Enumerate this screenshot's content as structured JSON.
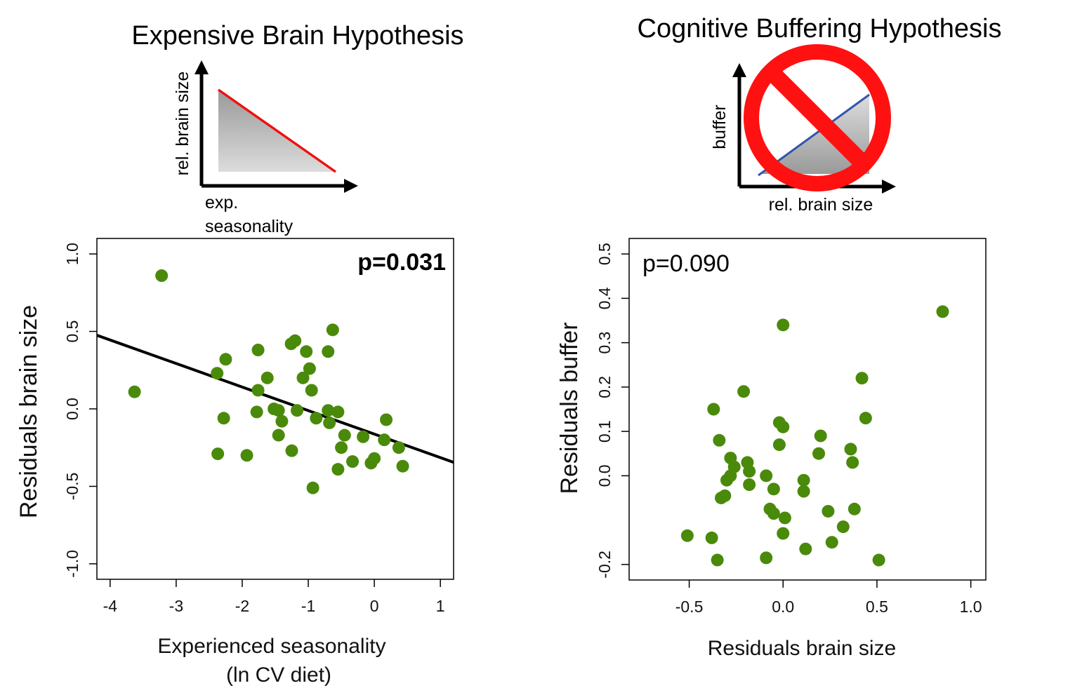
{
  "left": {
    "title": "Expensive Brain Hypothesis",
    "schematic": {
      "ylabel": "rel. brain size",
      "xlabel_line1": "exp.",
      "xlabel_line2": "seasonality",
      "line_color": "#ee1111"
    }
  },
  "right": {
    "title": "Cognitive Buffering Hypothesis",
    "schematic": {
      "ylabel": "buffer",
      "xlabel": "rel. brain size",
      "line_color": "#3355aa",
      "prohibition_color": "#ff1111"
    }
  },
  "chart_data": [
    {
      "type": "scatter",
      "xlabel_line1": "Experienced seasonality",
      "xlabel_line2": "(ln CV diet)",
      "ylabel": "Residuals brain size",
      "annotation": "p=0.031",
      "xlim": [
        -4.2,
        1.2
      ],
      "ylim": [
        -1.1,
        1.1
      ],
      "xticks": [
        "-4",
        "-3",
        "-2",
        "-1",
        "0",
        "1"
      ],
      "xtick_values": [
        -4,
        -3,
        -2,
        -1,
        0,
        1
      ],
      "yticks": [
        "-1.0",
        "-0.5",
        "0.0",
        "0.5",
        "1.0"
      ],
      "ytick_values": [
        -1.0,
        -0.5,
        0.0,
        0.5,
        1.0
      ],
      "point_color": "#4a8a0b",
      "fit_line": {
        "x": [
          -4.2,
          1.2
        ],
        "y": [
          0.475,
          -0.345
        ]
      },
      "points": [
        [
          -3.22,
          0.86
        ],
        [
          -3.63,
          0.11
        ],
        [
          -2.38,
          0.23
        ],
        [
          -2.25,
          0.32
        ],
        [
          -2.28,
          -0.06
        ],
        [
          -2.37,
          -0.29
        ],
        [
          -1.93,
          -0.3
        ],
        [
          -1.76,
          0.38
        ],
        [
          -1.62,
          0.2
        ],
        [
          -1.76,
          0.12
        ],
        [
          -1.78,
          -0.02
        ],
        [
          -1.52,
          0.0
        ],
        [
          -1.45,
          -0.01
        ],
        [
          -1.4,
          -0.08
        ],
        [
          -1.45,
          -0.17
        ],
        [
          -1.25,
          -0.27
        ],
        [
          -1.26,
          0.42
        ],
        [
          -1.2,
          0.44
        ],
        [
          -1.03,
          0.37
        ],
        [
          -1.08,
          0.2
        ],
        [
          -0.98,
          0.26
        ],
        [
          -0.95,
          0.12
        ],
        [
          -1.17,
          -0.01
        ],
        [
          -0.88,
          -0.06
        ],
        [
          -0.93,
          -0.51
        ],
        [
          -0.63,
          0.51
        ],
        [
          -0.7,
          0.37
        ],
        [
          -0.7,
          -0.01
        ],
        [
          -0.55,
          -0.02
        ],
        [
          -0.68,
          -0.09
        ],
        [
          -0.45,
          -0.17
        ],
        [
          -0.5,
          -0.25
        ],
        [
          -0.55,
          -0.39
        ],
        [
          -0.33,
          -0.34
        ],
        [
          -0.17,
          -0.18
        ],
        [
          0.18,
          -0.07
        ],
        [
          0.15,
          -0.2
        ],
        [
          -0.05,
          -0.35
        ],
        [
          0.0,
          -0.32
        ],
        [
          0.37,
          -0.25
        ],
        [
          0.43,
          -0.37
        ]
      ]
    },
    {
      "type": "scatter",
      "xlabel": "Residuals brain size",
      "ylabel": "Residuals buffer",
      "annotation": "p=0.090",
      "xlim": [
        -0.82,
        1.08
      ],
      "ylim": [
        -0.235,
        0.535
      ],
      "xticks": [
        "-0.5",
        "0.0",
        "0.5",
        "1.0"
      ],
      "xtick_values": [
        -0.5,
        0.0,
        0.5,
        1.0
      ],
      "yticks": [
        "-0.2",
        "0.0",
        "0.1",
        "0.2",
        "0.3",
        "0.4",
        "0.5"
      ],
      "ytick_values": [
        -0.2,
        0.0,
        0.1,
        0.2,
        0.3,
        0.4,
        0.5
      ],
      "point_color": "#4a8a0b",
      "points": [
        [
          0.85,
          0.37
        ],
        [
          0.0,
          0.34
        ],
        [
          -0.21,
          0.19
        ],
        [
          0.42,
          0.22
        ],
        [
          -0.37,
          0.15
        ],
        [
          0.44,
          0.13
        ],
        [
          -0.02,
          0.12
        ],
        [
          0.0,
          0.11
        ],
        [
          -0.34,
          0.08
        ],
        [
          0.2,
          0.09
        ],
        [
          -0.02,
          0.07
        ],
        [
          0.36,
          0.06
        ],
        [
          -0.28,
          0.04
        ],
        [
          0.19,
          0.05
        ],
        [
          -0.19,
          0.03
        ],
        [
          0.37,
          0.03
        ],
        [
          -0.26,
          0.02
        ],
        [
          -0.18,
          0.01
        ],
        [
          -0.28,
          0.0
        ],
        [
          -0.09,
          0.0
        ],
        [
          -0.3,
          -0.01
        ],
        [
          0.11,
          -0.01
        ],
        [
          -0.18,
          -0.02
        ],
        [
          -0.05,
          -0.03
        ],
        [
          0.11,
          -0.035
        ],
        [
          -0.31,
          -0.045
        ],
        [
          -0.33,
          -0.05
        ],
        [
          -0.07,
          -0.075
        ],
        [
          0.24,
          -0.08
        ],
        [
          -0.05,
          -0.085
        ],
        [
          0.38,
          -0.075
        ],
        [
          0.01,
          -0.095
        ],
        [
          0.32,
          -0.115
        ],
        [
          -0.51,
          -0.135
        ],
        [
          -0.38,
          -0.14
        ],
        [
          0.0,
          -0.13
        ],
        [
          0.26,
          -0.15
        ],
        [
          0.12,
          -0.165
        ],
        [
          -0.09,
          -0.185
        ],
        [
          -0.35,
          -0.19
        ],
        [
          0.51,
          -0.19
        ]
      ]
    }
  ]
}
